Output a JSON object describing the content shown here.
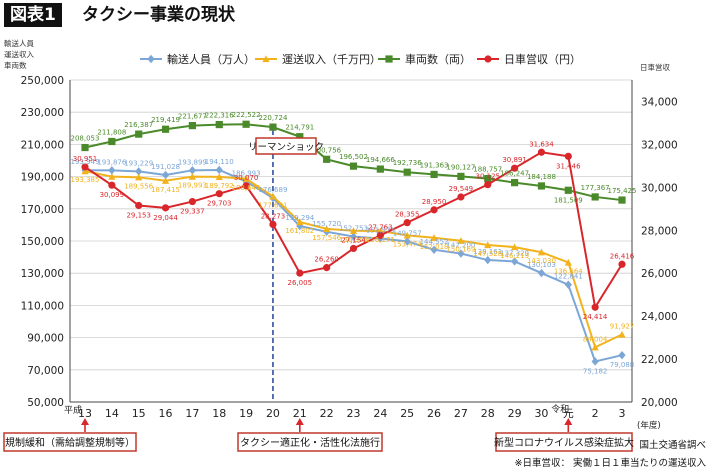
{
  "header": {
    "badge": "図表1",
    "title": "タクシー事業の現状"
  },
  "chart_data": {
    "type": "line",
    "left_axis_label": [
      "輸送人員",
      "運送収入",
      "車両数"
    ],
    "right_axis_label": "日車営収",
    "yleft_ticks": [
      "250,000",
      "230,000",
      "210,000",
      "190,000",
      "170,000",
      "150,000",
      "130,000",
      "110,000",
      "90,000",
      "70,000",
      "50,000"
    ],
    "yleft_lim": [
      50000,
      250000
    ],
    "yright_ticks": [
      "34,000",
      "32,000",
      "30,000",
      "28,000",
      "26,000",
      "24,000",
      "22,000",
      "20,000"
    ],
    "yright_lim": [
      20000,
      35000
    ],
    "x_era_heisei": "平成",
    "x_era_reiwa": "令和",
    "categories": [
      "13",
      "14",
      "15",
      "16",
      "17",
      "18",
      "19",
      "20",
      "21",
      "22",
      "23",
      "24",
      "25",
      "26",
      "27",
      "28",
      "29",
      "30",
      "元",
      "2",
      "3"
    ],
    "x_unit": "(年度)",
    "legend": [
      "輸送人員（万人）",
      "運送収入（千万円）",
      "車両数（両）",
      "日車営収（円）"
    ],
    "series": [
      {
        "name": "輸送人員（万人）",
        "axis": "left",
        "color": "#7ba6d6",
        "marker": "diamond",
        "values": [
          193949,
          193876,
          193229,
          191028,
          193899,
          194110,
          186993,
          176689,
          159294,
          155720,
          152753,
          151573,
          149757,
          144552,
          142200,
          138161,
          137329,
          130103,
          122841,
          75182,
          79088
        ],
        "labels": [
          "193,949",
          "193,876",
          "193,229",
          "191,028",
          "193,899",
          "194,110",
          "186,993",
          "176,689",
          "159,294",
          "155,720",
          "152,753",
          "151,573",
          "149,757",
          "144,552",
          "142,200",
          "138,161",
          "137,329",
          "130,103",
          "122,841",
          "75,182",
          "79,088"
        ]
      },
      {
        "name": "運送収入（千万円）",
        "axis": "left",
        "color": "#f2b21c",
        "marker": "triangle",
        "values": [
          193385,
          190000,
          189556,
          187415,
          189993,
          189792,
          188641,
          177681,
          161802,
          157546,
          156359,
          156171,
          153474,
          152018,
          150169,
          147528,
          146219,
          143030,
          136664,
          84004,
          91927
        ],
        "labels": [
          "193,385",
          "",
          "189,556",
          "187,415",
          "189,993",
          "189,792",
          "188,641",
          "177,681",
          "161,802",
          "157,546",
          "156,359",
          "156,171",
          "153,474",
          "152,018",
          "150,169",
          "147,528",
          "146,219",
          "143,030",
          "136,664",
          "84,004",
          "91,927"
        ]
      },
      {
        "name": "車両数（両）",
        "axis": "left",
        "color": "#4a8a2a",
        "marker": "square",
        "values": [
          208053,
          211808,
          216387,
          219419,
          221677,
          222316,
          222522,
          220724,
          214791,
          200756,
          196502,
          194666,
          192736,
          191363,
          190127,
          188757,
          186247,
          184188,
          181509,
          177367,
          175425
        ],
        "labels": [
          "208,053",
          "211,808",
          "216,387",
          "219,419",
          "221,677",
          "222,316",
          "222,522",
          "220,724",
          "214,791",
          "200,756",
          "196,502",
          "194,666",
          "192,736",
          "191,363",
          "190,127",
          "188,757",
          "186,247",
          "184,188",
          "181,509",
          "177,367",
          "175,425"
        ]
      },
      {
        "name": "日車営収（円）",
        "axis": "right",
        "color": "#d9262b",
        "marker": "circle",
        "values": [
          30951,
          30099,
          29153,
          29044,
          29337,
          29703,
          30070,
          28273,
          26005,
          26260,
          27154,
          27763,
          28355,
          28950,
          29549,
          30125,
          30891,
          31634,
          31446,
          24414,
          26416
        ],
        "labels": [
          "30,951",
          "30,099",
          "29,153",
          "29,044",
          "29,337",
          "29,703",
          "30,070",
          "28,273",
          "26,005",
          "26,260",
          "27,154",
          "27,763",
          "28,355",
          "28,950",
          "29,549",
          "30,125",
          "30,891",
          "31,634",
          "31,446",
          "24,414",
          "26,416"
        ]
      }
    ],
    "annotations": {
      "lehman": "リーマンショック",
      "events": [
        "規制緩和（需給調整規制等）",
        "タクシー適正化・活性化法施行",
        "新型コロナウイルス感染症拡大"
      ],
      "source": "国土交通省調べ",
      "footnote": "※日車営収： 実働１日１車当たりの運送収入"
    }
  }
}
